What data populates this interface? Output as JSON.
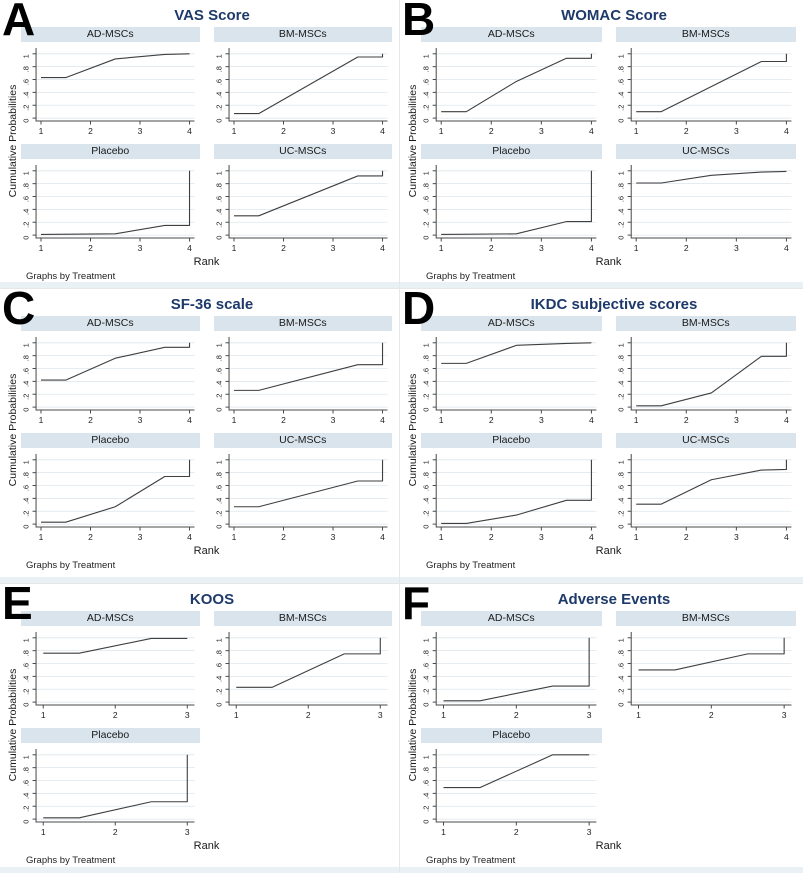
{
  "figure": {
    "ylabel": "Cumulative Probabilities",
    "xlabel": "Rank",
    "note": "Graphs by Treatment",
    "y_ticks": [
      0,
      0.2,
      0.4,
      0.6,
      0.8,
      1
    ],
    "y_tick_labels": [
      "0",
      ".2",
      ".4",
      ".6",
      ".8",
      "1"
    ],
    "colors": {
      "title": "#1e3a6b",
      "header_bg": "#d9e4ec",
      "line": "#3f3f3f",
      "grid": "#dce6ee",
      "axis": "#4a4a4a",
      "tick_text": "#222222",
      "strip": "#eaf1f5"
    }
  },
  "chart_data": [
    {
      "panel": "A",
      "title": "VAS Score",
      "type": "line",
      "xlabel": "Rank",
      "ylabel": "Cumulative Probabilities",
      "note": "Graphs by Treatment",
      "x_ticks": [
        1,
        2,
        3,
        4
      ],
      "ylim": [
        0,
        1
      ],
      "grid": true,
      "subplots": [
        {
          "label": "AD-MSCs",
          "points": [
            [
              1,
              0.63
            ],
            [
              1.5,
              0.63
            ],
            [
              2.5,
              0.92
            ],
            [
              3.5,
              0.99
            ],
            [
              4,
              1.0
            ]
          ]
        },
        {
          "label": "BM-MSCs",
          "points": [
            [
              1,
              0.07
            ],
            [
              1.5,
              0.07
            ],
            [
              3.5,
              0.95
            ],
            [
              4,
              0.95
            ],
            [
              4,
              1.0
            ]
          ]
        },
        {
          "label": "Placebo",
          "points": [
            [
              1,
              0.01
            ],
            [
              2.5,
              0.02
            ],
            [
              3.5,
              0.15
            ],
            [
              4,
              0.15
            ],
            [
              4,
              1.0
            ]
          ]
        },
        {
          "label": "UC-MSCs",
          "points": [
            [
              1,
              0.3
            ],
            [
              1.5,
              0.3
            ],
            [
              3.5,
              0.92
            ],
            [
              4,
              0.92
            ],
            [
              4,
              1.0
            ]
          ]
        }
      ]
    },
    {
      "panel": "B",
      "title": "WOMAC Score",
      "type": "line",
      "xlabel": "Rank",
      "ylabel": "Cumulative Probabilities",
      "note": "Graphs by Treatment",
      "x_ticks": [
        1,
        2,
        3,
        4
      ],
      "ylim": [
        0,
        1
      ],
      "grid": true,
      "subplots": [
        {
          "label": "AD-MSCs",
          "points": [
            [
              1,
              0.1
            ],
            [
              1.5,
              0.1
            ],
            [
              2.5,
              0.57
            ],
            [
              3.5,
              0.93
            ],
            [
              4,
              0.93
            ],
            [
              4,
              1.0
            ]
          ]
        },
        {
          "label": "BM-MSCs",
          "points": [
            [
              1,
              0.1
            ],
            [
              1.5,
              0.1
            ],
            [
              3.5,
              0.88
            ],
            [
              4,
              0.88
            ],
            [
              4,
              1.0
            ]
          ]
        },
        {
          "label": "Placebo",
          "points": [
            [
              1,
              0.01
            ],
            [
              2.5,
              0.02
            ],
            [
              3.5,
              0.21
            ],
            [
              4,
              0.21
            ],
            [
              4,
              1.0
            ]
          ]
        },
        {
          "label": "UC-MSCs",
          "points": [
            [
              1,
              0.81
            ],
            [
              1.5,
              0.81
            ],
            [
              2.5,
              0.93
            ],
            [
              3.5,
              0.98
            ],
            [
              4,
              0.99
            ]
          ]
        }
      ]
    },
    {
      "panel": "C",
      "title": "SF-36 scale",
      "type": "line",
      "xlabel": "Rank",
      "ylabel": "Cumulative Probabilities",
      "note": "Graphs by Treatment",
      "x_ticks": [
        1,
        2,
        3,
        4
      ],
      "ylim": [
        0,
        1
      ],
      "grid": true,
      "subplots": [
        {
          "label": "AD-MSCs",
          "points": [
            [
              1,
              0.42
            ],
            [
              1.5,
              0.42
            ],
            [
              2.5,
              0.76
            ],
            [
              3.5,
              0.93
            ],
            [
              4,
              0.93
            ],
            [
              4,
              1.0
            ]
          ]
        },
        {
          "label": "BM-MSCs",
          "points": [
            [
              1,
              0.26
            ],
            [
              1.5,
              0.26
            ],
            [
              3.5,
              0.66
            ],
            [
              4,
              0.66
            ],
            [
              4,
              1.0
            ]
          ]
        },
        {
          "label": "Placebo",
          "points": [
            [
              1,
              0.03
            ],
            [
              1.5,
              0.03
            ],
            [
              2.5,
              0.27
            ],
            [
              3.5,
              0.74
            ],
            [
              4,
              0.74
            ],
            [
              4,
              1.0
            ]
          ]
        },
        {
          "label": "UC-MSCs",
          "points": [
            [
              1,
              0.27
            ],
            [
              1.5,
              0.27
            ],
            [
              3.5,
              0.67
            ],
            [
              4,
              0.67
            ],
            [
              4,
              1.0
            ]
          ]
        }
      ]
    },
    {
      "panel": "D",
      "title": "IKDC subjective scores",
      "type": "line",
      "xlabel": "Rank",
      "ylabel": "Cumulative Probabilities",
      "note": "Graphs by Treatment",
      "x_ticks": [
        1,
        2,
        3,
        4
      ],
      "ylim": [
        0,
        1
      ],
      "grid": true,
      "subplots": [
        {
          "label": "AD-MSCs",
          "points": [
            [
              1,
              0.68
            ],
            [
              1.5,
              0.68
            ],
            [
              2.5,
              0.96
            ],
            [
              3.5,
              0.99
            ],
            [
              4,
              1.0
            ]
          ]
        },
        {
          "label": "BM-MSCs",
          "points": [
            [
              1,
              0.02
            ],
            [
              1.5,
              0.02
            ],
            [
              2.5,
              0.22
            ],
            [
              3.5,
              0.79
            ],
            [
              4,
              0.79
            ],
            [
              4,
              1.0
            ]
          ]
        },
        {
          "label": "Placebo",
          "points": [
            [
              1,
              0.01
            ],
            [
              1.5,
              0.01
            ],
            [
              2.5,
              0.14
            ],
            [
              3.5,
              0.37
            ],
            [
              4,
              0.37
            ],
            [
              4,
              1.0
            ]
          ]
        },
        {
          "label": "UC-MSCs",
          "points": [
            [
              1,
              0.31
            ],
            [
              1.5,
              0.31
            ],
            [
              2.5,
              0.69
            ],
            [
              3.5,
              0.84
            ],
            [
              4,
              0.85
            ],
            [
              4,
              1.0
            ]
          ]
        }
      ]
    },
    {
      "panel": "E",
      "title": "KOOS",
      "type": "line",
      "xlabel": "Rank",
      "ylabel": "Cumulative Probabilities",
      "note": "Graphs by Treatment",
      "x_ticks": [
        1,
        2,
        3
      ],
      "ylim": [
        0,
        1
      ],
      "grid": true,
      "subplots": [
        {
          "label": "AD-MSCs",
          "points": [
            [
              1,
              0.76
            ],
            [
              1.5,
              0.76
            ],
            [
              2.5,
              0.99
            ],
            [
              3,
              0.99
            ]
          ]
        },
        {
          "label": "BM-MSCs",
          "points": [
            [
              1,
              0.23
            ],
            [
              1.5,
              0.23
            ],
            [
              2.5,
              0.75
            ],
            [
              3,
              0.75
            ],
            [
              3,
              1.0
            ]
          ]
        },
        {
          "label": "Placebo",
          "points": [
            [
              1,
              0.02
            ],
            [
              1.5,
              0.02
            ],
            [
              2.5,
              0.27
            ],
            [
              3,
              0.27
            ],
            [
              3,
              1.0
            ]
          ]
        }
      ]
    },
    {
      "panel": "F",
      "title": "Adverse Events",
      "type": "line",
      "xlabel": "Rank",
      "ylabel": "Cumulative Probabilities",
      "note": "Graphs by Treatment",
      "x_ticks": [
        1,
        2,
        3
      ],
      "ylim": [
        0,
        1
      ],
      "grid": true,
      "subplots": [
        {
          "label": "AD-MSCs",
          "points": [
            [
              1,
              0.02
            ],
            [
              1.5,
              0.02
            ],
            [
              2.5,
              0.25
            ],
            [
              3,
              0.25
            ],
            [
              3,
              1.0
            ]
          ]
        },
        {
          "label": "BM-MSCs",
          "points": [
            [
              1,
              0.5
            ],
            [
              1.5,
              0.5
            ],
            [
              2.5,
              0.75
            ],
            [
              3,
              0.75
            ],
            [
              3,
              1.0
            ]
          ]
        },
        {
          "label": "Placebo",
          "points": [
            [
              1,
              0.49
            ],
            [
              1.5,
              0.49
            ],
            [
              2.5,
              1.0
            ],
            [
              3,
              1.0
            ]
          ]
        }
      ]
    }
  ]
}
